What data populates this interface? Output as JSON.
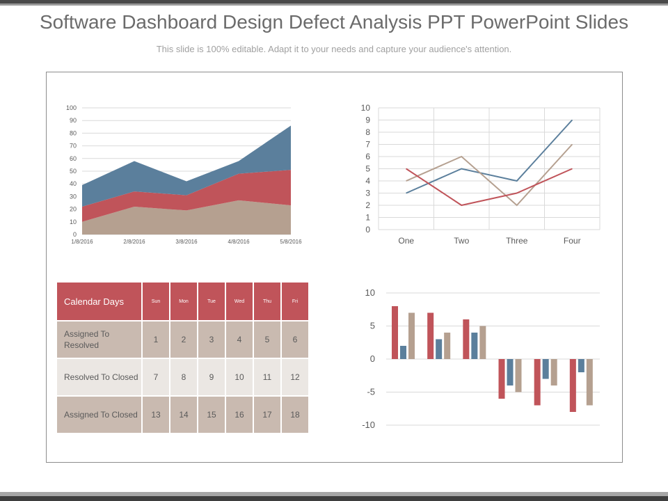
{
  "title": "Software Dashboard Design Defect Analysis PPT PowerPoint Slides",
  "subtitle": "This slide is 100% editable. Adapt it to your needs and capture your audience's attention.",
  "colors": {
    "red": "#c0545a",
    "blue": "#5b7f9c",
    "tan": "#b5a090",
    "row_dark": "#c9bab0",
    "row_light": "#ebe7e3"
  },
  "chart_data": [
    {
      "type": "area",
      "stacked": true,
      "x": [
        "1/8/2016",
        "2/8/2016",
        "3/8/2016",
        "4/8/2016",
        "5/8/2016"
      ],
      "series": [
        {
          "values": [
            10,
            22,
            19,
            27,
            23
          ],
          "color": "#b5a090"
        },
        {
          "values": [
            12,
            12,
            12,
            21,
            28
          ],
          "color": "#c0545a"
        },
        {
          "values": [
            17,
            24,
            11,
            10,
            35
          ],
          "color": "#5b7f9c"
        }
      ],
      "ylim": [
        0,
        100
      ],
      "yticks": [
        0,
        10,
        20,
        30,
        40,
        50,
        60,
        70,
        80,
        90,
        100
      ],
      "grid": true,
      "title": "",
      "xlabel": "",
      "ylabel": ""
    },
    {
      "type": "line",
      "categories": [
        "One",
        "Two",
        "Three",
        "Four"
      ],
      "series": [
        {
          "values": [
            3,
            5,
            4,
            9
          ],
          "color": "#5b7f9c"
        },
        {
          "values": [
            4,
            6,
            2,
            7
          ],
          "color": "#b5a090"
        },
        {
          "values": [
            5,
            2,
            3,
            5
          ],
          "color": "#c0545a"
        }
      ],
      "ylim": [
        0,
        10
      ],
      "yticks": [
        0,
        1,
        2,
        3,
        4,
        5,
        6,
        7,
        8,
        9,
        10
      ],
      "grid": true,
      "title": "",
      "xlabel": "",
      "ylabel": ""
    },
    {
      "type": "bar",
      "categories": [
        "",
        "",
        "",
        "",
        "",
        ""
      ],
      "series": [
        {
          "values": [
            8,
            7,
            6,
            -6,
            -7,
            -8
          ],
          "color": "#c0545a"
        },
        {
          "values": [
            2,
            3,
            4,
            -4,
            -3,
            -2
          ],
          "color": "#5b7f9c"
        },
        {
          "values": [
            7,
            4,
            5,
            -5,
            -4,
            -7
          ],
          "color": "#b5a090"
        }
      ],
      "ylim": [
        -10,
        10
      ],
      "yticks": [
        -10,
        -5,
        0,
        5,
        10
      ],
      "grid": true,
      "title": "",
      "xlabel": "",
      "ylabel": ""
    },
    {
      "type": "table",
      "header": [
        "Calendar Days",
        "Sun",
        "Mon",
        "Tue",
        "Wed",
        "Thu",
        "Fri"
      ],
      "rows": [
        {
          "label": "Assigned To Resolved",
          "values": [
            "1",
            "2",
            "3",
            "4",
            "5",
            "6"
          ]
        },
        {
          "label": "Resolved To Closed",
          "values": [
            "7",
            "8",
            "9",
            "10",
            "11",
            "12"
          ]
        },
        {
          "label": "Assigned To Closed",
          "values": [
            "13",
            "14",
            "15",
            "16",
            "17",
            "18"
          ]
        }
      ]
    }
  ]
}
